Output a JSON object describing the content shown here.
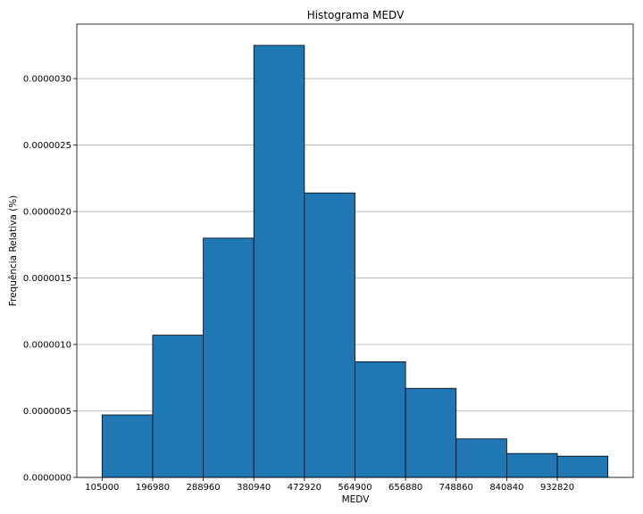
{
  "chart_data": {
    "type": "bar",
    "title": "Histograma MEDV",
    "xlabel": "MEDV",
    "ylabel": "Frequência Relativa (%)",
    "bin_edges": [
      105000,
      196980,
      288960,
      380940,
      472920,
      564900,
      656880,
      748860,
      840840,
      932820,
      1024800
    ],
    "values": [
      4.7e-07,
      1.07e-06,
      1.8e-06,
      3.25e-06,
      2.14e-06,
      8.7e-07,
      6.7e-07,
      2.9e-07,
      1.8e-07,
      1.6e-07
    ],
    "x_ticks": [
      105000,
      196980,
      288960,
      380940,
      472920,
      564900,
      656880,
      748860,
      840840,
      932820
    ],
    "x_tick_labels": [
      "105000",
      "196980",
      "288960",
      "380940",
      "472920",
      "564900",
      "656880",
      "748860",
      "840840",
      "932820"
    ],
    "y_ticks": [
      0,
      5e-07,
      1e-06,
      1.5e-06,
      2e-06,
      2.5e-06,
      3e-06
    ],
    "y_tick_labels": [
      "0.0000000",
      "0.0000005",
      "0.0000010",
      "0.0000015",
      "0.0000020",
      "0.0000025",
      "0.0000030"
    ],
    "xlim": [
      59010,
      1070790
    ],
    "ylim": [
      0,
      3.41e-06
    ],
    "grid": "horizontal",
    "colors": {
      "bar": "#1f77b4",
      "edge": "#000000",
      "grid": "#b0b0b0"
    }
  }
}
